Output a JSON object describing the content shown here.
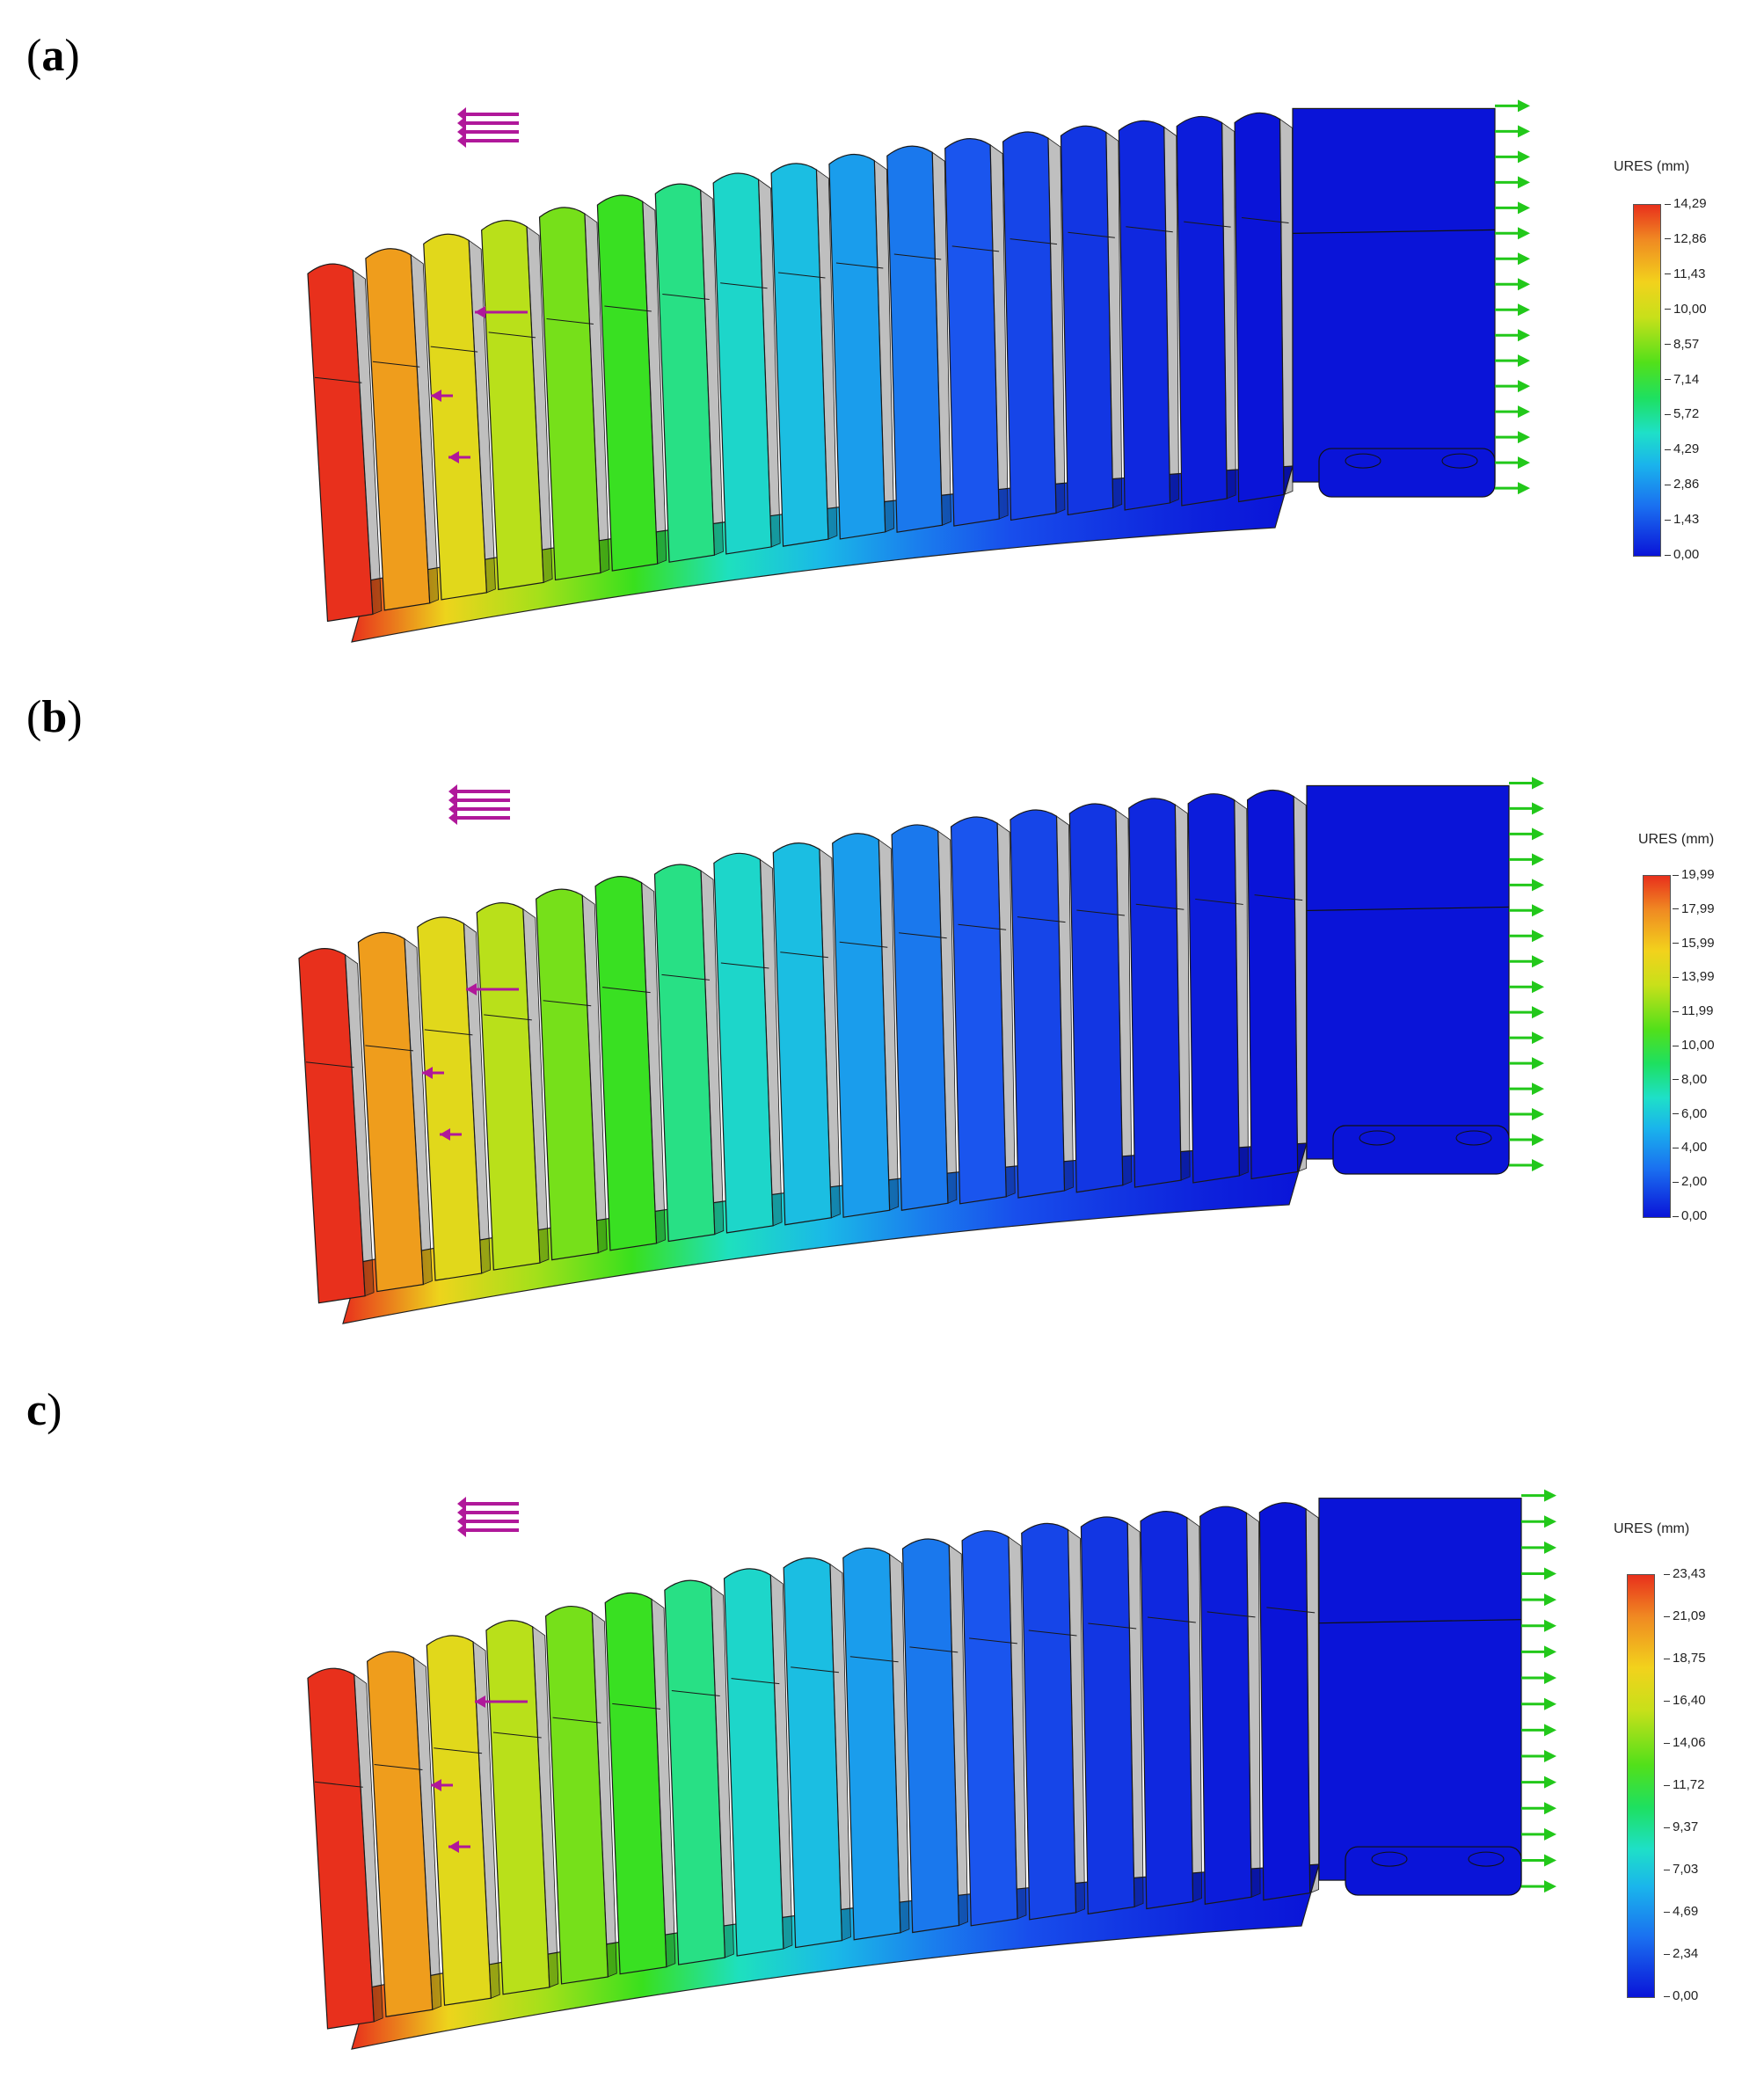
{
  "panels": [
    {
      "label_open": "(",
      "label_letter": "a",
      "label_close": ")",
      "legend_title": "URES (mm)",
      "ticks": [
        "14,29",
        "12,86",
        "11,43",
        "10,00",
        "8,57",
        "7,14",
        "5,72",
        "4,29",
        "2,86",
        "1,43",
        "0,00"
      ]
    },
    {
      "label_open": "(",
      "label_letter": "b",
      "label_close": ")",
      "legend_title": "URES (mm)",
      "ticks": [
        "19,99",
        "17,99",
        "15,99",
        "13,99",
        "11,99",
        "10,00",
        "8,00",
        "6,00",
        "4,00",
        "2,00",
        "0,00"
      ]
    },
    {
      "label_open": "",
      "label_letter": "c",
      "label_close": ")",
      "legend_title": "URES (mm)",
      "ticks": [
        "23,43",
        "21,09",
        "18,75",
        "16,40",
        "14,06",
        "11,72",
        "9,37",
        "7,03",
        "4,69",
        "2,34",
        "0,00"
      ]
    }
  ],
  "colors": {
    "max": "#e8301c",
    "high": "#f2d21c",
    "mid": "#3ae01a",
    "low_mid": "#1ab4ec",
    "min": "#0a14d8",
    "force_arrow": "#b0189a",
    "fixture": "#22c81a"
  }
}
